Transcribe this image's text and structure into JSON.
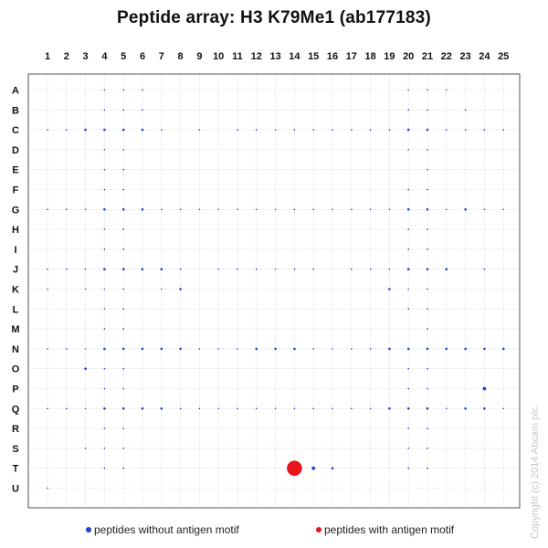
{
  "chart_data": {
    "type": "scatter",
    "title": "Peptide array:  H3 K79Me1 (ab177183)",
    "columns": [
      "1",
      "2",
      "3",
      "4",
      "5",
      "6",
      "7",
      "8",
      "9",
      "10",
      "11",
      "12",
      "13",
      "14",
      "15",
      "16",
      "17",
      "18",
      "19",
      "20",
      "21",
      "22",
      "23",
      "24",
      "25"
    ],
    "rows": [
      "A",
      "B",
      "C",
      "D",
      "E",
      "F",
      "G",
      "H",
      "I",
      "J",
      "K",
      "L",
      "M",
      "N",
      "O",
      "P",
      "Q",
      "R",
      "S",
      "T",
      "U"
    ],
    "grid": true,
    "legend_position": "bottom",
    "series": [
      {
        "name": "peptides without antigen motif",
        "color": "#1f3fd6",
        "points": [
          {
            "row": "A",
            "col": 4,
            "size": 1
          },
          {
            "row": "A",
            "col": 5,
            "size": 1
          },
          {
            "row": "A",
            "col": 6,
            "size": 1
          },
          {
            "row": "A",
            "col": 20,
            "size": 1
          },
          {
            "row": "A",
            "col": 21,
            "size": 1
          },
          {
            "row": "A",
            "col": 22,
            "size": 1
          },
          {
            "row": "B",
            "col": 4,
            "size": 1
          },
          {
            "row": "B",
            "col": 5,
            "size": 1
          },
          {
            "row": "B",
            "col": 6,
            "size": 1
          },
          {
            "row": "B",
            "col": 20,
            "size": 1
          },
          {
            "row": "B",
            "col": 21,
            "size": 1
          },
          {
            "row": "B",
            "col": 23,
            "size": 1
          },
          {
            "row": "C",
            "col": 1,
            "size": 1
          },
          {
            "row": "C",
            "col": 2,
            "size": 1
          },
          {
            "row": "C",
            "col": 3,
            "size": 2
          },
          {
            "row": "C",
            "col": 4,
            "size": 2
          },
          {
            "row": "C",
            "col": 5,
            "size": 2
          },
          {
            "row": "C",
            "col": 6,
            "size": 2
          },
          {
            "row": "C",
            "col": 7,
            "size": 1
          },
          {
            "row": "C",
            "col": 9,
            "size": 1
          },
          {
            "row": "C",
            "col": 11,
            "size": 1
          },
          {
            "row": "C",
            "col": 12,
            "size": 1
          },
          {
            "row": "C",
            "col": 13,
            "size": 1
          },
          {
            "row": "C",
            "col": 14,
            "size": 1
          },
          {
            "row": "C",
            "col": 15,
            "size": 1
          },
          {
            "row": "C",
            "col": 16,
            "size": 1
          },
          {
            "row": "C",
            "col": 17,
            "size": 1
          },
          {
            "row": "C",
            "col": 18,
            "size": 1
          },
          {
            "row": "C",
            "col": 19,
            "size": 1
          },
          {
            "row": "C",
            "col": 20,
            "size": 2
          },
          {
            "row": "C",
            "col": 21,
            "size": 2
          },
          {
            "row": "C",
            "col": 22,
            "size": 1
          },
          {
            "row": "C",
            "col": 23,
            "size": 1
          },
          {
            "row": "C",
            "col": 24,
            "size": 1
          },
          {
            "row": "C",
            "col": 25,
            "size": 1
          },
          {
            "row": "D",
            "col": 4,
            "size": 1
          },
          {
            "row": "D",
            "col": 5,
            "size": 1
          },
          {
            "row": "D",
            "col": 20,
            "size": 1
          },
          {
            "row": "D",
            "col": 21,
            "size": 1
          },
          {
            "row": "E",
            "col": 4,
            "size": 1
          },
          {
            "row": "E",
            "col": 5,
            "size": 1
          },
          {
            "row": "E",
            "col": 21,
            "size": 1
          },
          {
            "row": "F",
            "col": 4,
            "size": 1
          },
          {
            "row": "F",
            "col": 5,
            "size": 1
          },
          {
            "row": "F",
            "col": 20,
            "size": 1
          },
          {
            "row": "F",
            "col": 21,
            "size": 1
          },
          {
            "row": "G",
            "col": 1,
            "size": 1
          },
          {
            "row": "G",
            "col": 2,
            "size": 1
          },
          {
            "row": "G",
            "col": 3,
            "size": 1
          },
          {
            "row": "G",
            "col": 4,
            "size": 2
          },
          {
            "row": "G",
            "col": 5,
            "size": 2
          },
          {
            "row": "G",
            "col": 6,
            "size": 2
          },
          {
            "row": "G",
            "col": 7,
            "size": 1
          },
          {
            "row": "G",
            "col": 8,
            "size": 1
          },
          {
            "row": "G",
            "col": 9,
            "size": 1
          },
          {
            "row": "G",
            "col": 10,
            "size": 1
          },
          {
            "row": "G",
            "col": 11,
            "size": 1
          },
          {
            "row": "G",
            "col": 12,
            "size": 1
          },
          {
            "row": "G",
            "col": 13,
            "size": 1
          },
          {
            "row": "G",
            "col": 14,
            "size": 1
          },
          {
            "row": "G",
            "col": 15,
            "size": 1
          },
          {
            "row": "G",
            "col": 16,
            "size": 1
          },
          {
            "row": "G",
            "col": 17,
            "size": 1
          },
          {
            "row": "G",
            "col": 18,
            "size": 1
          },
          {
            "row": "G",
            "col": 19,
            "size": 1
          },
          {
            "row": "G",
            "col": 20,
            "size": 2
          },
          {
            "row": "G",
            "col": 21,
            "size": 2
          },
          {
            "row": "G",
            "col": 22,
            "size": 1
          },
          {
            "row": "G",
            "col": 23,
            "size": 2
          },
          {
            "row": "G",
            "col": 24,
            "size": 1
          },
          {
            "row": "G",
            "col": 25,
            "size": 1
          },
          {
            "row": "H",
            "col": 4,
            "size": 1
          },
          {
            "row": "H",
            "col": 5,
            "size": 1
          },
          {
            "row": "H",
            "col": 20,
            "size": 1
          },
          {
            "row": "H",
            "col": 21,
            "size": 1
          },
          {
            "row": "I",
            "col": 4,
            "size": 1
          },
          {
            "row": "I",
            "col": 5,
            "size": 1
          },
          {
            "row": "I",
            "col": 20,
            "size": 1
          },
          {
            "row": "I",
            "col": 21,
            "size": 1
          },
          {
            "row": "J",
            "col": 1,
            "size": 1
          },
          {
            "row": "J",
            "col": 2,
            "size": 1
          },
          {
            "row": "J",
            "col": 3,
            "size": 1
          },
          {
            "row": "J",
            "col": 4,
            "size": 2
          },
          {
            "row": "J",
            "col": 5,
            "size": 2
          },
          {
            "row": "J",
            "col": 6,
            "size": 2
          },
          {
            "row": "J",
            "col": 7,
            "size": 2
          },
          {
            "row": "J",
            "col": 8,
            "size": 1
          },
          {
            "row": "J",
            "col": 10,
            "size": 1
          },
          {
            "row": "J",
            "col": 11,
            "size": 1
          },
          {
            "row": "J",
            "col": 12,
            "size": 1
          },
          {
            "row": "J",
            "col": 13,
            "size": 1
          },
          {
            "row": "J",
            "col": 14,
            "size": 1
          },
          {
            "row": "J",
            "col": 15,
            "size": 1
          },
          {
            "row": "J",
            "col": 17,
            "size": 1
          },
          {
            "row": "J",
            "col": 18,
            "size": 1
          },
          {
            "row": "J",
            "col": 19,
            "size": 1
          },
          {
            "row": "J",
            "col": 20,
            "size": 2
          },
          {
            "row": "J",
            "col": 21,
            "size": 2
          },
          {
            "row": "J",
            "col": 22,
            "size": 2
          },
          {
            "row": "J",
            "col": 24,
            "size": 1
          },
          {
            "row": "K",
            "col": 1,
            "size": 1
          },
          {
            "row": "K",
            "col": 3,
            "size": 1
          },
          {
            "row": "K",
            "col": 4,
            "size": 1
          },
          {
            "row": "K",
            "col": 5,
            "size": 1
          },
          {
            "row": "K",
            "col": 7,
            "size": 1
          },
          {
            "row": "K",
            "col": 8,
            "size": 2
          },
          {
            "row": "K",
            "col": 19,
            "size": 2
          },
          {
            "row": "K",
            "col": 20,
            "size": 1
          },
          {
            "row": "K",
            "col": 21,
            "size": 1
          },
          {
            "row": "L",
            "col": 4,
            "size": 1
          },
          {
            "row": "L",
            "col": 5,
            "size": 1
          },
          {
            "row": "L",
            "col": 20,
            "size": 1
          },
          {
            "row": "L",
            "col": 21,
            "size": 1
          },
          {
            "row": "M",
            "col": 4,
            "size": 1
          },
          {
            "row": "M",
            "col": 5,
            "size": 1
          },
          {
            "row": "M",
            "col": 21,
            "size": 1
          },
          {
            "row": "N",
            "col": 1,
            "size": 1
          },
          {
            "row": "N",
            "col": 2,
            "size": 1
          },
          {
            "row": "N",
            "col": 3,
            "size": 1
          },
          {
            "row": "N",
            "col": 4,
            "size": 2
          },
          {
            "row": "N",
            "col": 5,
            "size": 2
          },
          {
            "row": "N",
            "col": 6,
            "size": 2
          },
          {
            "row": "N",
            "col": 7,
            "size": 2
          },
          {
            "row": "N",
            "col": 8,
            "size": 2
          },
          {
            "row": "N",
            "col": 9,
            "size": 1
          },
          {
            "row": "N",
            "col": 10,
            "size": 1
          },
          {
            "row": "N",
            "col": 11,
            "size": 1
          },
          {
            "row": "N",
            "col": 12,
            "size": 2
          },
          {
            "row": "N",
            "col": 13,
            "size": 2
          },
          {
            "row": "N",
            "col": 14,
            "size": 2
          },
          {
            "row": "N",
            "col": 15,
            "size": 1
          },
          {
            "row": "N",
            "col": 16,
            "size": 1
          },
          {
            "row": "N",
            "col": 17,
            "size": 1
          },
          {
            "row": "N",
            "col": 18,
            "size": 1
          },
          {
            "row": "N",
            "col": 19,
            "size": 2
          },
          {
            "row": "N",
            "col": 20,
            "size": 2
          },
          {
            "row": "N",
            "col": 21,
            "size": 2
          },
          {
            "row": "N",
            "col": 22,
            "size": 2
          },
          {
            "row": "N",
            "col": 23,
            "size": 2
          },
          {
            "row": "N",
            "col": 24,
            "size": 2
          },
          {
            "row": "N",
            "col": 25,
            "size": 2
          },
          {
            "row": "O",
            "col": 3,
            "size": 2
          },
          {
            "row": "O",
            "col": 4,
            "size": 1
          },
          {
            "row": "O",
            "col": 5,
            "size": 1
          },
          {
            "row": "O",
            "col": 20,
            "size": 1
          },
          {
            "row": "O",
            "col": 21,
            "size": 1
          },
          {
            "row": "P",
            "col": 4,
            "size": 1
          },
          {
            "row": "P",
            "col": 5,
            "size": 1
          },
          {
            "row": "P",
            "col": 20,
            "size": 1
          },
          {
            "row": "P",
            "col": 21,
            "size": 1
          },
          {
            "row": "P",
            "col": 24,
            "size": 3
          },
          {
            "row": "Q",
            "col": 1,
            "size": 1
          },
          {
            "row": "Q",
            "col": 2,
            "size": 1
          },
          {
            "row": "Q",
            "col": 3,
            "size": 1
          },
          {
            "row": "Q",
            "col": 4,
            "size": 2
          },
          {
            "row": "Q",
            "col": 5,
            "size": 2
          },
          {
            "row": "Q",
            "col": 6,
            "size": 2
          },
          {
            "row": "Q",
            "col": 7,
            "size": 2
          },
          {
            "row": "Q",
            "col": 8,
            "size": 1
          },
          {
            "row": "Q",
            "col": 9,
            "size": 1
          },
          {
            "row": "Q",
            "col": 10,
            "size": 1
          },
          {
            "row": "Q",
            "col": 11,
            "size": 1
          },
          {
            "row": "Q",
            "col": 12,
            "size": 1
          },
          {
            "row": "Q",
            "col": 13,
            "size": 1
          },
          {
            "row": "Q",
            "col": 14,
            "size": 1
          },
          {
            "row": "Q",
            "col": 15,
            "size": 1
          },
          {
            "row": "Q",
            "col": 16,
            "size": 1
          },
          {
            "row": "Q",
            "col": 17,
            "size": 1
          },
          {
            "row": "Q",
            "col": 18,
            "size": 1
          },
          {
            "row": "Q",
            "col": 19,
            "size": 2
          },
          {
            "row": "Q",
            "col": 20,
            "size": 2
          },
          {
            "row": "Q",
            "col": 21,
            "size": 2
          },
          {
            "row": "Q",
            "col": 22,
            "size": 1
          },
          {
            "row": "Q",
            "col": 23,
            "size": 2
          },
          {
            "row": "Q",
            "col": 24,
            "size": 2
          },
          {
            "row": "Q",
            "col": 25,
            "size": 1
          },
          {
            "row": "R",
            "col": 4,
            "size": 1
          },
          {
            "row": "R",
            "col": 5,
            "size": 1
          },
          {
            "row": "R",
            "col": 20,
            "size": 1
          },
          {
            "row": "R",
            "col": 21,
            "size": 1
          },
          {
            "row": "S",
            "col": 3,
            "size": 1
          },
          {
            "row": "S",
            "col": 4,
            "size": 1
          },
          {
            "row": "S",
            "col": 5,
            "size": 1
          },
          {
            "row": "S",
            "col": 20,
            "size": 1
          },
          {
            "row": "S",
            "col": 21,
            "size": 1
          },
          {
            "row": "T",
            "col": 4,
            "size": 1
          },
          {
            "row": "T",
            "col": 5,
            "size": 1
          },
          {
            "row": "T",
            "col": 15,
            "size": 3
          },
          {
            "row": "T",
            "col": 16,
            "size": 2
          },
          {
            "row": "T",
            "col": 20,
            "size": 1
          },
          {
            "row": "T",
            "col": 21,
            "size": 1
          },
          {
            "row": "U",
            "col": 1,
            "size": 1
          }
        ]
      },
      {
        "name": "peptides with antigen motif",
        "color": "#e8141b",
        "points": [
          {
            "row": "T",
            "col": 14,
            "size": 18
          }
        ]
      }
    ]
  },
  "watermark": "Copyright (c) 2014 Abcam plc."
}
